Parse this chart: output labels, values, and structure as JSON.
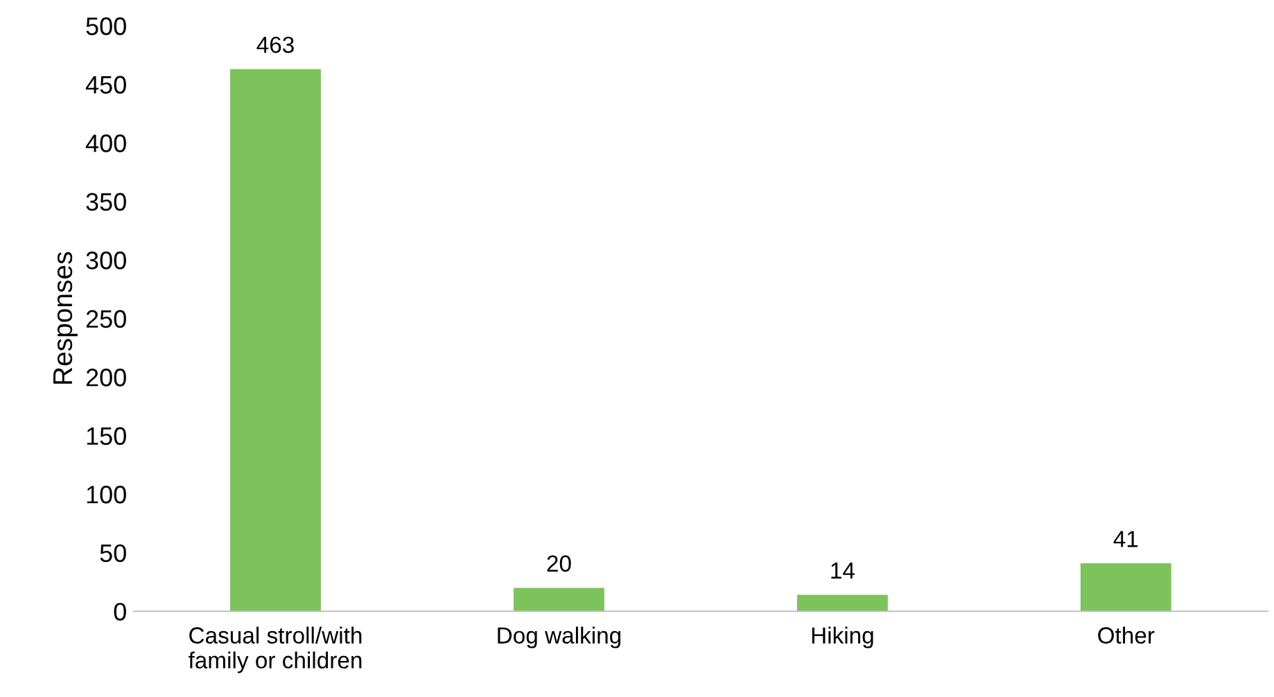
{
  "chart_data": {
    "type": "bar",
    "ylabel": "Responses",
    "categories": [
      "Casual stroll/with\nfamily or children",
      "Dog walking",
      "Hiking",
      "Other"
    ],
    "values": [
      463,
      20,
      14,
      41
    ],
    "color": "#7dc35b",
    "ylim": [
      0,
      500
    ],
    "yticks": [
      0,
      50,
      100,
      150,
      200,
      250,
      300,
      350,
      400,
      450,
      500
    ],
    "data_labels": true,
    "grid": false,
    "legend": false
  }
}
